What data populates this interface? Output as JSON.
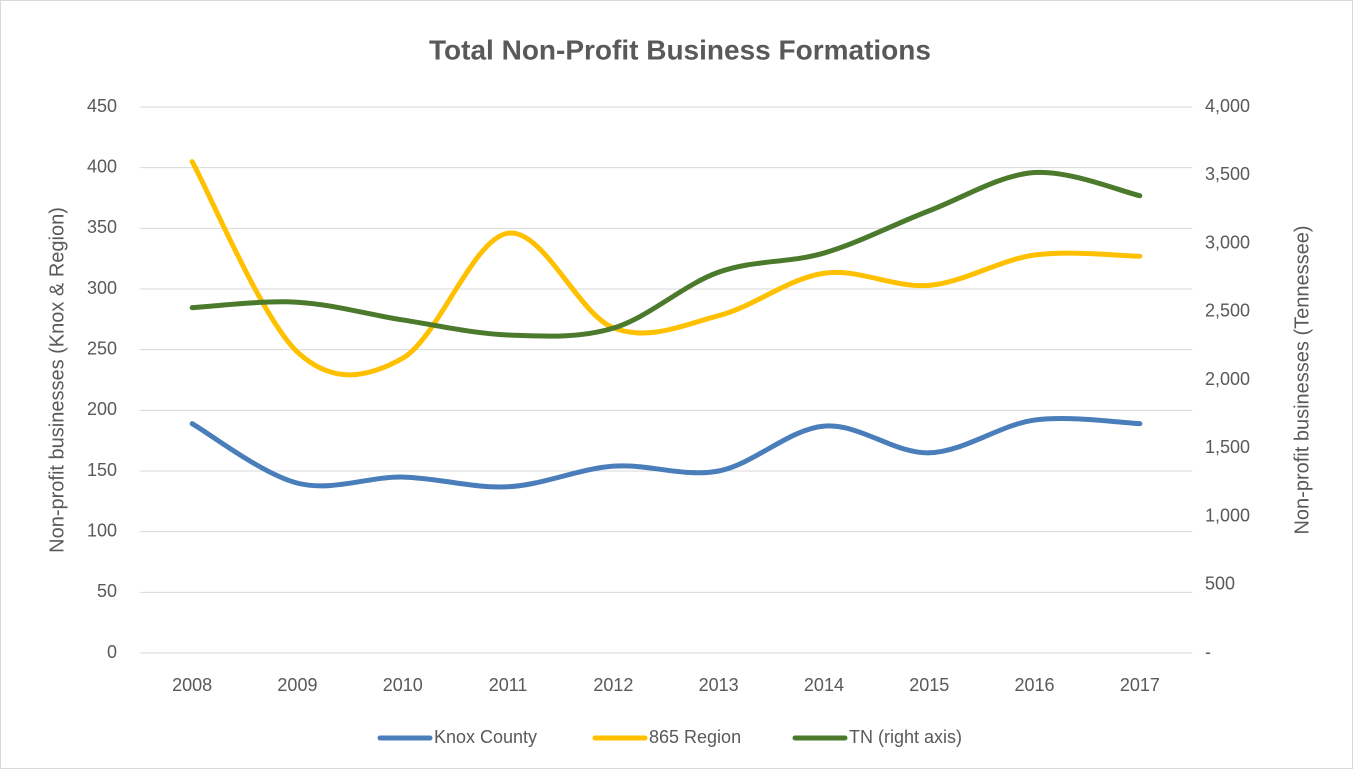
{
  "chart_data": {
    "type": "line",
    "title": "Total Non-Profit Business Formations",
    "y_label": "Non-profit businesses (Knox & Region)",
    "y2_label": "Non-profit  businesses (Tennessee)",
    "categories": [
      "2008",
      "2009",
      "2010",
      "2011",
      "2012",
      "2013",
      "2014",
      "2015",
      "2016",
      "2017"
    ],
    "series": [
      {
        "name": "Knox County",
        "color": "#4a7ebb",
        "values": [
          189,
          140,
          145,
          137,
          154,
          150,
          187,
          165,
          192,
          189
        ]
      },
      {
        "name": "865 Region",
        "color": "#ffc000",
        "values": [
          405,
          248,
          243,
          346,
          268,
          278,
          313,
          303,
          328,
          327
        ]
      },
      {
        "name": "TN (right axis)",
        "color": "#4b7a2c",
        "axis": "y2",
        "values": [
          2530,
          2570,
          2440,
          2330,
          2380,
          2790,
          2930,
          3240,
          3520,
          3350
        ]
      }
    ],
    "ylim": [
      0,
      450
    ],
    "yticks": [
      0,
      50,
      100,
      150,
      200,
      250,
      300,
      350,
      400,
      450
    ],
    "y2lim": [
      0,
      4000
    ],
    "y2ticks": [
      {
        "value": 0,
        "label": "-"
      },
      500,
      {
        "value": 1000,
        "label": "1,000"
      },
      {
        "value": 1500,
        "label": "1,500"
      },
      {
        "value": 2000,
        "label": "2,000"
      },
      {
        "value": 2500,
        "label": "2,500"
      },
      {
        "value": 3000,
        "label": "3,000"
      },
      {
        "value": 3500,
        "label": "3,500"
      },
      {
        "value": 4000,
        "label": "4,000"
      }
    ],
    "grid": true,
    "smooth": true,
    "legend": "bottom"
  }
}
